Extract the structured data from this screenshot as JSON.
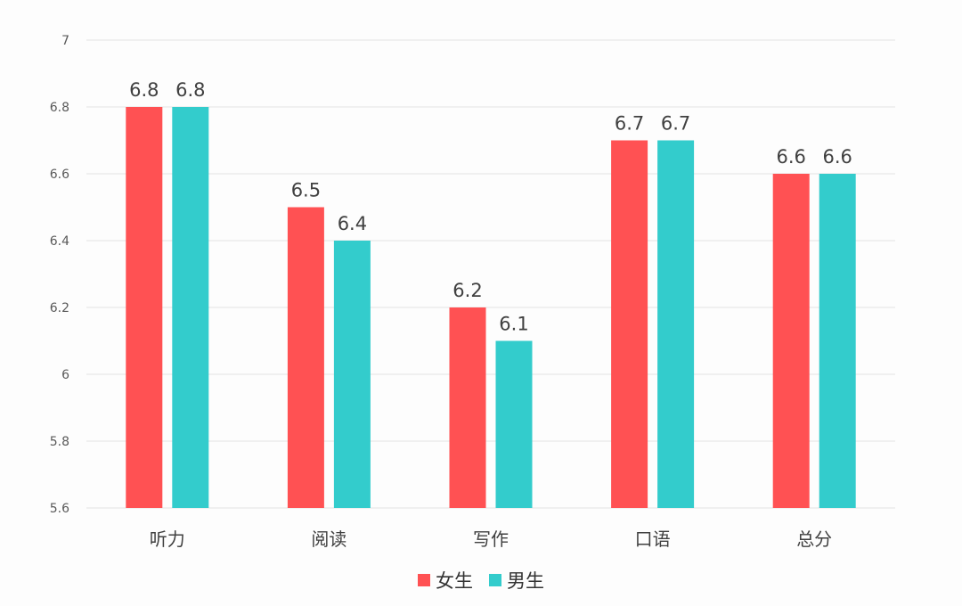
{
  "chart_data": {
    "type": "bar",
    "title": "",
    "xlabel": "",
    "ylabel": "",
    "categories": [
      "听力",
      "阅读",
      "写作",
      "口语",
      "总分"
    ],
    "series": [
      {
        "name": "女生",
        "values": [
          6.8,
          6.5,
          6.2,
          6.7,
          6.6
        ],
        "labels": [
          "6.8",
          "6.5",
          "6.2",
          "6.7",
          "6.6"
        ],
        "color": "#ff5153"
      },
      {
        "name": "男生",
        "values": [
          6.8,
          6.4,
          6.1,
          6.7,
          6.6
        ],
        "labels": [
          "6.8",
          "6.4",
          "6.1",
          "6.7",
          "6.6"
        ],
        "color": "#33cccc"
      }
    ],
    "ylim": [
      5.6,
      7
    ],
    "yticks": [
      5.6,
      5.8,
      6,
      6.2,
      6.4,
      6.6,
      6.8,
      7
    ],
    "ytick_labels": [
      "5.6",
      "5.8",
      "6",
      "6.2",
      "6.4",
      "6.6",
      "6.8",
      "7"
    ],
    "grid": true,
    "legend_position": "bottom-center"
  }
}
